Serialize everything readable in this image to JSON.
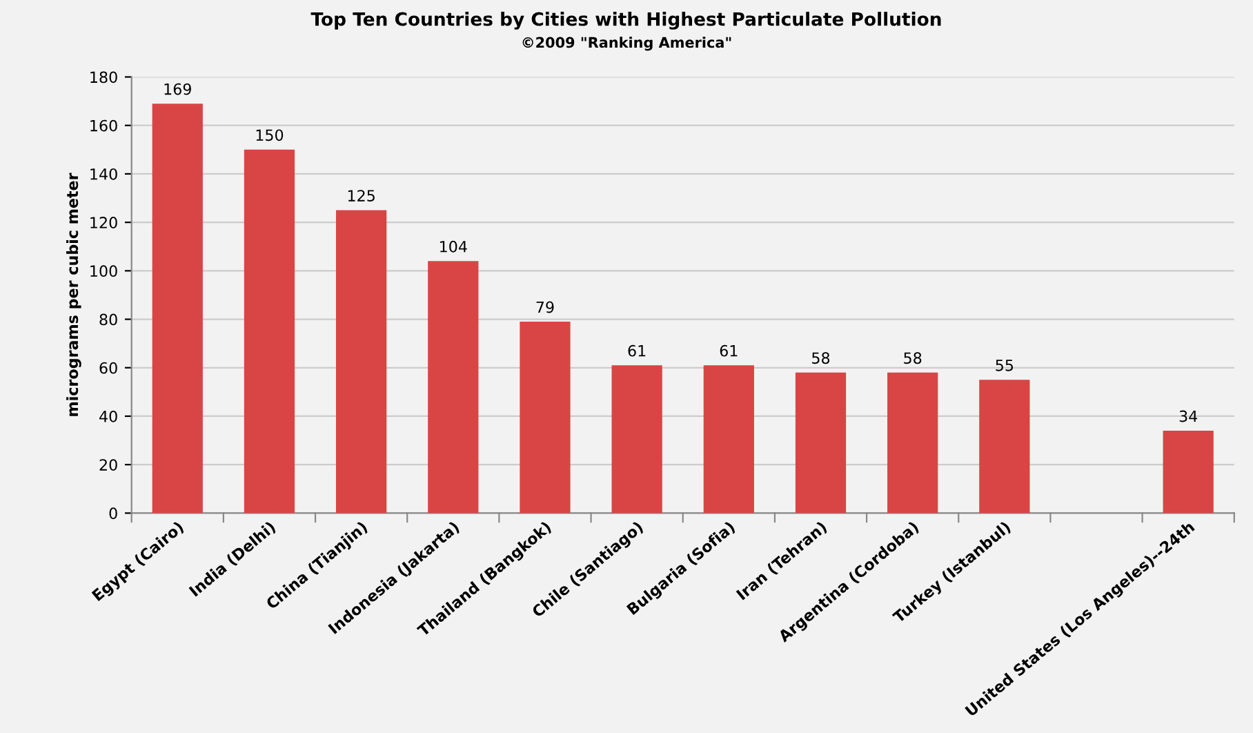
{
  "chart_data": {
    "type": "bar",
    "title": "Top Ten Countries by Cities with Highest Particulate Pollution",
    "subtitle": "©2009 \"Ranking America\"",
    "ylabel": "micrograms per cubic meter",
    "categories": [
      "Egypt (Cairo)",
      "India (Delhi)",
      "China (Tianjin)",
      "Indonesia (Jakarta)",
      "Thailand (Bangkok)",
      "Chile (Santiago)",
      "Bulgaria (Sofia)",
      "Iran (Tehran)",
      "Argentina (Cordoba)",
      "Turkey (Istanbul)",
      null,
      "United States (Los Angeles)--24th"
    ],
    "values": [
      169,
      150,
      125,
      104,
      79,
      61,
      61,
      58,
      58,
      55,
      null,
      34
    ],
    "color": "#d94545",
    "ylim": [
      0,
      180
    ],
    "yticks": [
      0,
      20,
      40,
      60,
      80,
      100,
      120,
      140,
      160,
      180
    ],
    "grid": "y",
    "data_labels": true
  }
}
